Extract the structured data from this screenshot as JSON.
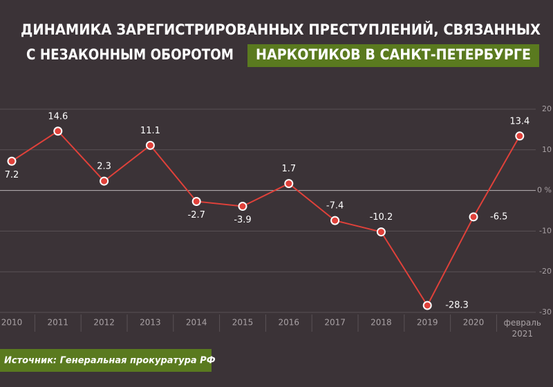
{
  "chart_data": {
    "type": "line",
    "title_line1": "ДИНАМИКА ЗАРЕГИСТРИРОВАННЫХ ПРЕСТУПЛЕНИЙ, СВЯЗАННЫХ",
    "title_line2": "С НЕЗАКОННЫМ ОБОРОТОМ",
    "title_highlight": "НАРКОТИКОВ В САНКТ-ПЕТЕРБУРГЕ",
    "source": "Источник: Генеральная прокуратура РФ",
    "categories": [
      "2010",
      "2011",
      "2012",
      "2013",
      "2014",
      "2015",
      "2016",
      "2017",
      "2018",
      "2019",
      "2020",
      "февраль 2021"
    ],
    "series": [
      {
        "color": "#e0413a",
        "values": [
          7.2,
          14.6,
          2.3,
          11.1,
          -2.7,
          -3.9,
          1.7,
          -7.4,
          -10.2,
          -28.3,
          -6.5,
          13.4
        ]
      }
    ],
    "ylim": [
      -30,
      20
    ],
    "yticks": [
      20,
      10,
      {
        "value": 0,
        "label": "0 %"
      },
      -10,
      -20,
      -30
    ],
    "grid": true
  }
}
